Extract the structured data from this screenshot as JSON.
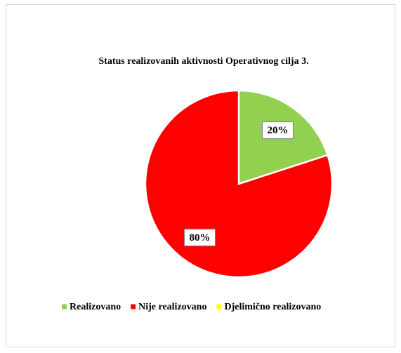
{
  "chart_data": {
    "type": "pie",
    "title": "Status realizovanih aktivnosti Operativnog cilja 3.",
    "categories": [
      "Realizovano",
      "Nije realizovano",
      "Djelimično realizovano"
    ],
    "values": [
      20,
      80,
      0
    ],
    "value_labels": [
      "20%",
      "80%",
      null
    ],
    "colors": [
      "#92d050",
      "#ff0000",
      "#ffff00"
    ],
    "legend": "bottom"
  }
}
